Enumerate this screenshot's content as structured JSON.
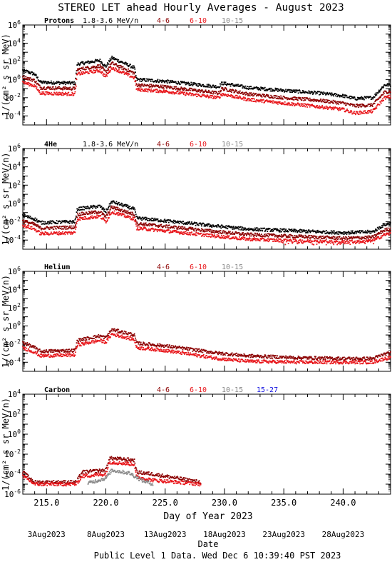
{
  "title": "STEREO LET ahead Hourly Averages - August 2023",
  "xlabel": "Day of Year 2023",
  "date_label": "Date",
  "footer": "Public Level 1 Data. Wed Dec  6 10:39:40 PST 2023",
  "x_ticks": [
    "215.0",
    "220.0",
    "225.0",
    "230.0",
    "235.0",
    "240.0"
  ],
  "date_ticks": [
    {
      "label": "3Aug2023",
      "doy": 215
    },
    {
      "label": "8Aug2023",
      "doy": 220
    },
    {
      "label": "13Aug2023",
      "doy": 225
    },
    {
      "label": "18Aug2023",
      "doy": 230
    },
    {
      "label": "23Aug2023",
      "doy": 235
    },
    {
      "label": "28Aug2023",
      "doy": 240
    }
  ],
  "colors": {
    "black": "#000000",
    "darkred": "#8b0000",
    "red": "#e8161b",
    "gray": "#888888",
    "blue": "#1010e0"
  },
  "chart_data": [
    {
      "type": "scatter",
      "panel": "Protons",
      "ylabel": "1/(cm² s sr MeV)",
      "xlim": [
        213,
        244
      ],
      "ylim_exp": [
        -5,
        6
      ],
      "yticks_exp": [
        -4,
        -2,
        0,
        2,
        4,
        6
      ],
      "legend": [
        {
          "label": "Protons",
          "color": "#000000"
        },
        {
          "label": "1.8-3.6 MeV/n",
          "color": "#000000"
        },
        {
          "label": "4-6",
          "color": "#8b0000"
        },
        {
          "label": "6-10",
          "color": "#e8161b"
        },
        {
          "label": "10-15",
          "color": "#888888"
        }
      ],
      "series": [
        {
          "name": "1.8-3.6 MeV/n",
          "color": "#000000",
          "knots": [
            [
              213,
              1
            ],
            [
              214,
              0.6
            ],
            [
              214.5,
              -0.3
            ],
            [
              217.4,
              -0.4
            ],
            [
              217.6,
              1.7
            ],
            [
              219.5,
              2.1
            ],
            [
              220,
              1.4
            ],
            [
              220.5,
              2.4
            ],
            [
              222.4,
              1.3
            ],
            [
              222.6,
              0
            ],
            [
              225,
              -0.2
            ],
            [
              229.5,
              -0.8
            ],
            [
              229.8,
              -0.4
            ],
            [
              232,
              -0.9
            ],
            [
              235,
              -1.2
            ],
            [
              238,
              -1.5
            ],
            [
              240,
              -1.8
            ],
            [
              241,
              -2.1
            ],
            [
              242.5,
              -2
            ],
            [
              243.5,
              -0.6
            ],
            [
              244,
              -0.6
            ]
          ]
        },
        {
          "name": "4-6",
          "color": "#8b0000",
          "knots": [
            [
              213,
              0.3
            ],
            [
              214,
              -0.1
            ],
            [
              214.5,
              -0.9
            ],
            [
              217.4,
              -1
            ],
            [
              217.6,
              1.1
            ],
            [
              219.5,
              1.5
            ],
            [
              220,
              0.8
            ],
            [
              220.5,
              1.8
            ],
            [
              222.4,
              0.7
            ],
            [
              222.6,
              -0.6
            ],
            [
              225,
              -0.8
            ],
            [
              229.5,
              -1.5
            ],
            [
              229.8,
              -1
            ],
            [
              232,
              -1.6
            ],
            [
              235,
              -2
            ],
            [
              238,
              -2.3
            ],
            [
              240,
              -2.6
            ],
            [
              241,
              -2.9
            ],
            [
              242.5,
              -2.8
            ],
            [
              243.5,
              -1.4
            ],
            [
              244,
              -1.3
            ]
          ]
        },
        {
          "name": "6-10",
          "color": "#e8161b",
          "knots": [
            [
              213,
              -0.3
            ],
            [
              214,
              -0.7
            ],
            [
              214.5,
              -1.5
            ],
            [
              217.4,
              -1.6
            ],
            [
              217.6,
              0.6
            ],
            [
              219.5,
              1
            ],
            [
              220,
              0.3
            ],
            [
              220.5,
              1.3
            ],
            [
              222.4,
              0.2
            ],
            [
              222.6,
              -1.1
            ],
            [
              225,
              -1.3
            ],
            [
              229.5,
              -2
            ],
            [
              229.8,
              -1.6
            ],
            [
              232,
              -2.2
            ],
            [
              235,
              -2.6
            ],
            [
              238,
              -3
            ],
            [
              240,
              -3.3
            ],
            [
              241,
              -3.7
            ],
            [
              242.5,
              -3.5
            ],
            [
              243.5,
              -2
            ],
            [
              244,
              -1.9
            ]
          ]
        }
      ]
    },
    {
      "type": "scatter",
      "panel": "4He",
      "ylabel": "1/(cm² s sr MeV/n)",
      "xlim": [
        213,
        244
      ],
      "ylim_exp": [
        -5,
        6
      ],
      "yticks_exp": [
        -4,
        -2,
        0,
        2,
        4,
        6
      ],
      "legend": [
        {
          "label": "4He",
          "color": "#000000"
        },
        {
          "label": "1.8-3.6 MeV/n",
          "color": "#000000"
        },
        {
          "label": "4-6",
          "color": "#8b0000"
        },
        {
          "label": "6-10",
          "color": "#e8161b"
        },
        {
          "label": "10-15",
          "color": "#888888"
        }
      ],
      "series": [
        {
          "name": "1.8-3.6 MeV/n",
          "color": "#000000",
          "knots": [
            [
              213,
              -1.3
            ],
            [
              214,
              -1.7
            ],
            [
              214.5,
              -2.1
            ],
            [
              217.4,
              -2
            ],
            [
              217.6,
              -0.6
            ],
            [
              219.5,
              -0.3
            ],
            [
              220,
              -0.9
            ],
            [
              220.5,
              0.2
            ],
            [
              222.4,
              -0.6
            ],
            [
              222.6,
              -1.6
            ],
            [
              225,
              -1.9
            ],
            [
              229.5,
              -2.5
            ],
            [
              232,
              -2.8
            ],
            [
              236,
              -3
            ],
            [
              240,
              -3.2
            ],
            [
              242.5,
              -3.1
            ],
            [
              243.5,
              -2.3
            ],
            [
              244,
              -2.2
            ]
          ]
        },
        {
          "name": "4-6",
          "color": "#8b0000",
          "knots": [
            [
              213,
              -1.9
            ],
            [
              214,
              -2.3
            ],
            [
              214.5,
              -2.7
            ],
            [
              217.4,
              -2.6
            ],
            [
              217.6,
              -1.2
            ],
            [
              219.5,
              -0.9
            ],
            [
              220,
              -1.5
            ],
            [
              220.5,
              -0.4
            ],
            [
              222.4,
              -1.2
            ],
            [
              222.6,
              -2.2
            ],
            [
              225,
              -2.5
            ],
            [
              229.5,
              -3.1
            ],
            [
              232,
              -3.4
            ],
            [
              236,
              -3.6
            ],
            [
              240,
              -3.8
            ],
            [
              242.5,
              -3.7
            ],
            [
              243.5,
              -2.9
            ],
            [
              244,
              -2.8
            ]
          ]
        },
        {
          "name": "6-10",
          "color": "#e8161b",
          "knots": [
            [
              213,
              -2.4
            ],
            [
              214,
              -2.8
            ],
            [
              214.5,
              -3.3
            ],
            [
              217.4,
              -3.2
            ],
            [
              217.6,
              -1.7
            ],
            [
              219.5,
              -1.4
            ],
            [
              220,
              -2
            ],
            [
              220.5,
              -0.9
            ],
            [
              222.4,
              -1.7
            ],
            [
              222.6,
              -2.7
            ],
            [
              225,
              -3
            ],
            [
              229.5,
              -3.6
            ],
            [
              232,
              -3.9
            ],
            [
              236,
              -4.1
            ],
            [
              240,
              -4.2
            ],
            [
              242.5,
              -4.1
            ],
            [
              243.5,
              -3.4
            ],
            [
              244,
              -3.3
            ]
          ]
        }
      ]
    },
    {
      "type": "scatter",
      "panel": "Helium",
      "ylabel": "1/(cm² s sr MeV/n)",
      "xlim": [
        213,
        244
      ],
      "ylim_exp": [
        -5,
        6
      ],
      "yticks_exp": [
        -4,
        -2,
        0,
        2,
        4,
        6
      ],
      "legend": [
        {
          "label": "Helium",
          "color": "#000000"
        },
        {
          "label": "4-6",
          "color": "#8b0000"
        },
        {
          "label": "6-10",
          "color": "#e8161b"
        },
        {
          "label": "10-15",
          "color": "#888888"
        }
      ],
      "series": [
        {
          "name": "4-6",
          "color": "#8b0000",
          "knots": [
            [
              213,
              -1.8
            ],
            [
              214,
              -2.4
            ],
            [
              214.5,
              -2.8
            ],
            [
              217.4,
              -2.7
            ],
            [
              217.6,
              -1.6
            ],
            [
              219.5,
              -1.1
            ],
            [
              220,
              -1.3
            ],
            [
              220.5,
              -0.4
            ],
            [
              222.4,
              -1
            ],
            [
              222.6,
              -1.9
            ],
            [
              225,
              -2.2
            ],
            [
              229.5,
              -3
            ],
            [
              232,
              -3.3
            ],
            [
              236,
              -3.5
            ],
            [
              240,
              -3.6
            ],
            [
              242.5,
              -3.6
            ],
            [
              243.5,
              -3.1
            ],
            [
              244,
              -3
            ]
          ]
        },
        {
          "name": "6-10",
          "color": "#e8161b",
          "knots": [
            [
              213,
              -2.4
            ],
            [
              214,
              -2.9
            ],
            [
              214.5,
              -3.3
            ],
            [
              217.4,
              -3.2
            ],
            [
              217.6,
              -2.1
            ],
            [
              219.5,
              -1.6
            ],
            [
              220,
              -1.8
            ],
            [
              220.5,
              -0.9
            ],
            [
              222.4,
              -1.5
            ],
            [
              222.6,
              -2.4
            ],
            [
              225,
              -2.7
            ],
            [
              229.5,
              -3.6
            ],
            [
              232,
              -3.9
            ],
            [
              236,
              -4
            ],
            [
              240,
              -4
            ],
            [
              242.5,
              -4
            ],
            [
              243.5,
              -3.6
            ],
            [
              244,
              -3.5
            ]
          ]
        }
      ]
    },
    {
      "type": "scatter",
      "panel": "Carbon",
      "ylabel": "1/(cm² s sr MeV/n)",
      "xlim": [
        213,
        244
      ],
      "ylim_exp": [
        -6,
        4
      ],
      "yticks_exp": [
        -6,
        -4,
        -2,
        0,
        2,
        4
      ],
      "legend": [
        {
          "label": "Carbon",
          "color": "#000000"
        },
        {
          "label": "4-6",
          "color": "#8b0000"
        },
        {
          "label": "6-10",
          "color": "#e8161b"
        },
        {
          "label": "10-15",
          "color": "#888888"
        },
        {
          "label": "15-27",
          "color": "#1010e0"
        }
      ],
      "series": [
        {
          "name": "4-6",
          "color": "#8b0000",
          "knots": [
            [
              213,
              -3.8
            ],
            [
              214,
              -4.8
            ],
            [
              217.5,
              -4.8
            ],
            [
              218,
              -3.8
            ],
            [
              220,
              -3.6
            ],
            [
              220.3,
              -2.4
            ],
            [
              222.4,
              -2.6
            ],
            [
              222.6,
              -3.8
            ],
            [
              224,
              -4
            ],
            [
              228,
              -4.8
            ]
          ]
        },
        {
          "name": "6-10",
          "color": "#e8161b",
          "knots": [
            [
              213,
              -4.2
            ],
            [
              214,
              -5
            ],
            [
              217.5,
              -5
            ],
            [
              218,
              -4.2
            ],
            [
              220,
              -4
            ],
            [
              220.3,
              -2.8
            ],
            [
              222.4,
              -3
            ],
            [
              222.6,
              -4.3
            ],
            [
              224,
              -4.6
            ],
            [
              228,
              -5
            ]
          ]
        },
        {
          "name": "10-15",
          "color": "#888888",
          "knots": [
            [
              218.5,
              -4.9
            ],
            [
              220,
              -4.4
            ],
            [
              220.5,
              -3.6
            ],
            [
              222,
              -3.9
            ],
            [
              223,
              -4.6
            ],
            [
              224,
              -5
            ]
          ]
        }
      ]
    }
  ]
}
